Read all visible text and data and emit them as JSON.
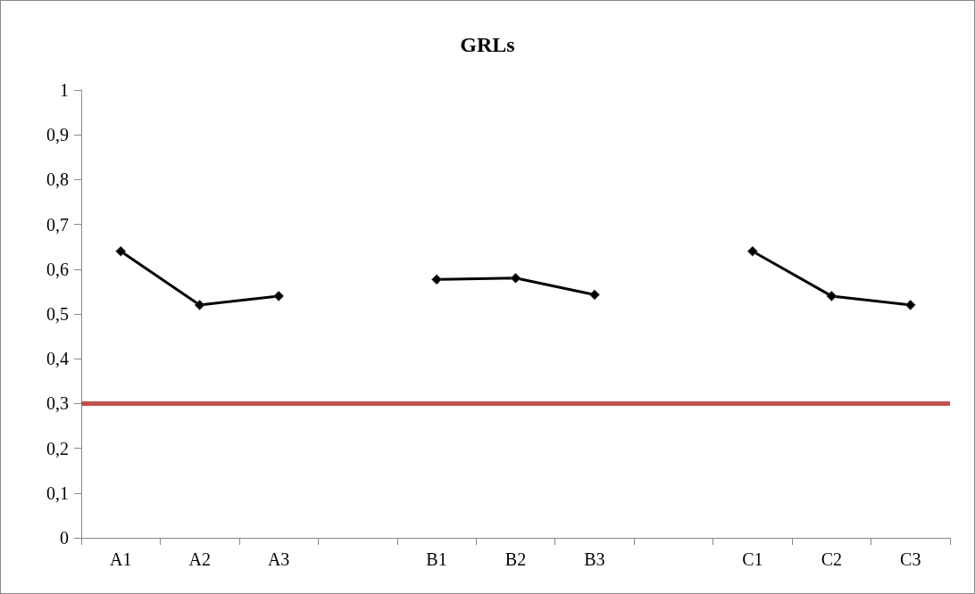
{
  "chart_data": {
    "type": "line",
    "title": "GRLs",
    "categories": [
      "A1",
      "A2",
      "A3",
      null,
      "B1",
      "B2",
      "B3",
      null,
      "C1",
      "C2",
      "C3"
    ],
    "series": [
      {
        "color": "#000000",
        "values": [
          0.64,
          0.52,
          0.54,
          null,
          0.577,
          0.58,
          0.543,
          null,
          0.64,
          0.54,
          0.52
        ]
      }
    ],
    "ylim": [
      0,
      1
    ],
    "yticks": [
      0,
      {
        "value": 0.1,
        "label": "0,1"
      },
      {
        "value": 0.2,
        "label": "0,2"
      },
      {
        "value": 0.3,
        "label": "0,3"
      },
      {
        "value": 0.4,
        "label": "0,4"
      },
      {
        "value": 0.5,
        "label": "0,5"
      },
      {
        "value": 0.6,
        "label": "0,6"
      },
      {
        "value": 0.7,
        "label": "0,7"
      },
      {
        "value": 0.8,
        "label": "0,8"
      },
      {
        "value": 0.9,
        "label": "0,9"
      },
      1
    ],
    "ref_lines": [
      {
        "axis": "y",
        "value": 0.3,
        "color": "#c0504d"
      }
    ],
    "marker": "diamond",
    "line_style": "solid",
    "grid": false
  }
}
